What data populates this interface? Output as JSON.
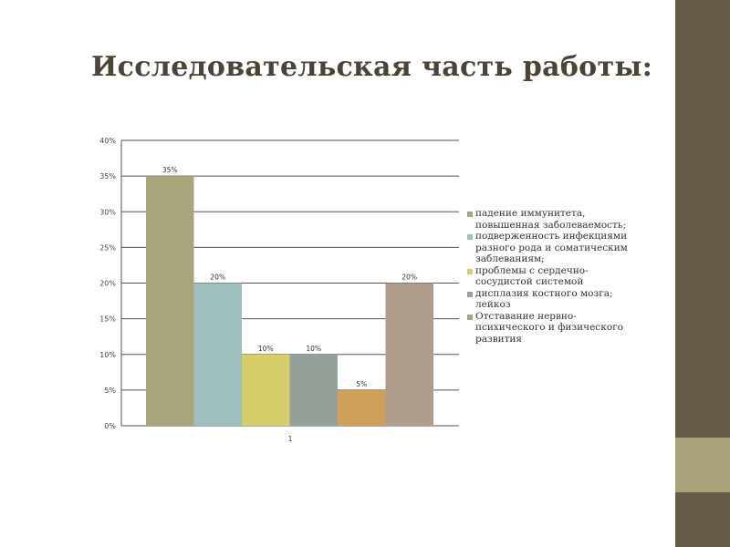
{
  "slide": {
    "title": "Исследовательская часть работы:",
    "colors": {
      "sidebar": "#675d47",
      "sidebar_accent": "#a9a37a",
      "title": "#4a4336"
    }
  },
  "chart_data": {
    "type": "bar",
    "categories": [
      "1"
    ],
    "ylim": [
      0,
      40
    ],
    "yticks": [
      "0%",
      "5%",
      "10%",
      "15%",
      "20%",
      "25%",
      "30%",
      "35%",
      "40%"
    ],
    "ytick_values": [
      0,
      5,
      10,
      15,
      20,
      25,
      30,
      35,
      40
    ],
    "grid": true,
    "legend_position": "right",
    "series": [
      {
        "name": "падение иммунитета, повышенная заболеваемость;",
        "values": [
          35
        ],
        "label": "35%",
        "color": "#a9a57a"
      },
      {
        "name": "подверженность инфекциями разного рода и соматическим заблеваниям;",
        "values": [
          20
        ],
        "label": "20%",
        "color": "#9fbfbd"
      },
      {
        "name": "проблемы с сердечно-сосудистой системой",
        "values": [
          10
        ],
        "label": "10%",
        "color": "#d6cc6a"
      },
      {
        "name": "дисплазия костного мозга; лейкоз",
        "values": [
          10
        ],
        "label": "10%",
        "color": "#95a098"
      },
      {
        "name": "",
        "values": [
          5
        ],
        "label": "5%",
        "color": "#cfa05c"
      },
      {
        "name": "Отставание нервно-психического и физического развития",
        "values": [
          20
        ],
        "label": "20%",
        "color": "#ae9d88"
      }
    ]
  }
}
